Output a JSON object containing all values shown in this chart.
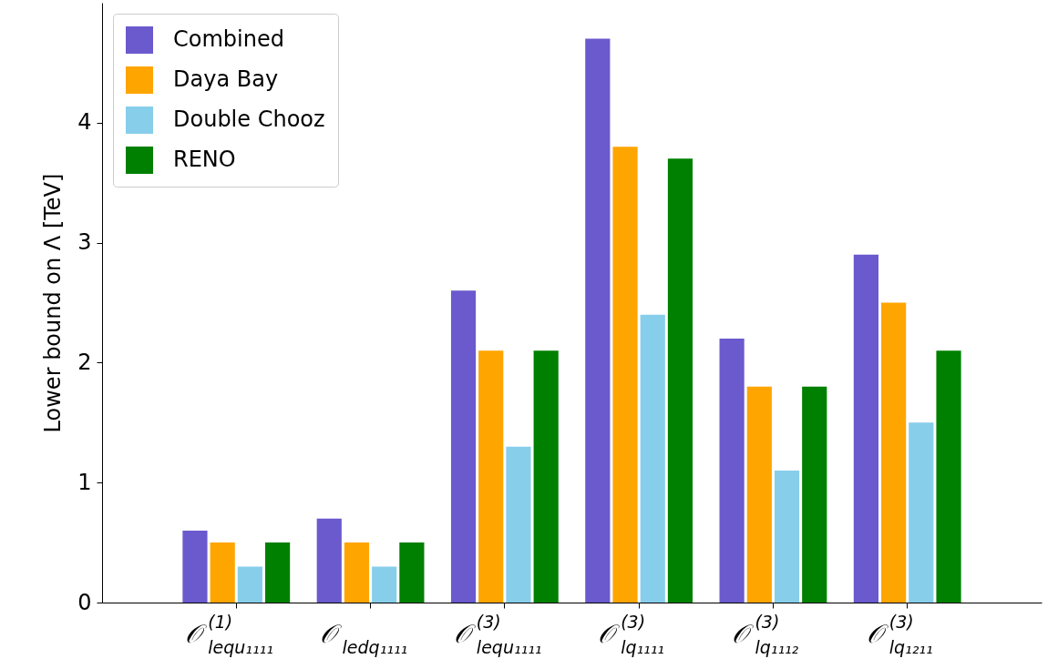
{
  "chart_data": {
    "type": "bar",
    "ylabel": "Lower bound on Λ [TeV]",
    "categories": [
      "𝒪$^{(1)}$$_{lequ₁₁₁₁}$",
      "𝒪$_{ledq₁₁₁₁}$",
      "𝒪$^{(3)}$$_{lequ₁₁₁₁}$",
      "𝒪$^{(3)}$$_{lq₁₁₁₁}$",
      "𝒪$^{(3)}$$_{lq₁₁₁₂}$",
      "𝒪$^{(3)}$$_{lq₁₂₁₁}$"
    ],
    "series": [
      {
        "name": "Combined",
        "color": "#6a5acd",
        "values": [
          0.6,
          0.7,
          2.6,
          4.7,
          2.2,
          2.9
        ]
      },
      {
        "name": "Daya Bay",
        "color": "#ffa500",
        "values": [
          0.5,
          0.5,
          2.1,
          3.8,
          1.8,
          2.5
        ]
      },
      {
        "name": "Double Chooz",
        "color": "#87ceeb",
        "values": [
          0.3,
          0.3,
          1.3,
          2.4,
          1.1,
          1.5
        ]
      },
      {
        "name": "RENO",
        "color": "#008000",
        "values": [
          0.5,
          0.5,
          2.1,
          3.7,
          1.8,
          2.1
        ]
      }
    ],
    "ylim": [
      0,
      5
    ],
    "yticks": [
      0,
      1,
      2,
      3,
      4
    ],
    "grid": false,
    "legend": "top left"
  }
}
